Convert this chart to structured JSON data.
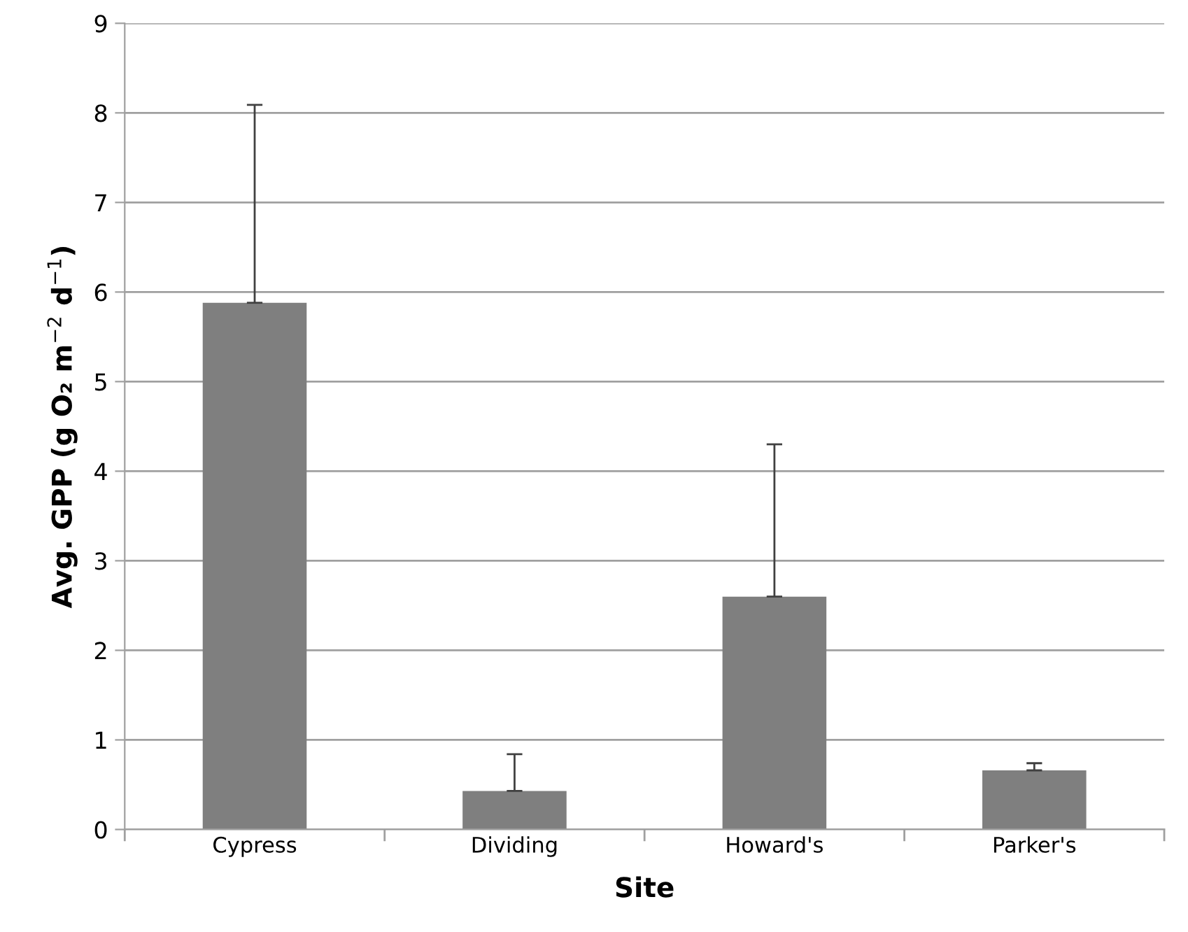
{
  "chart_data": {
    "type": "bar",
    "xlabel": "Site",
    "ylabel": "Avg. GPP (g O₂ m$^{−2}$ d$^{−1}$)",
    "categories": [
      "Cypress",
      "Dividing",
      "Howard's",
      "Parker's"
    ],
    "values": [
      5.88,
      0.43,
      2.6,
      0.66
    ],
    "errors": [
      [
        5.88,
        8.09
      ],
      [
        0.43,
        0.84
      ],
      [
        2.6,
        4.3
      ],
      [
        0.66,
        0.74
      ]
    ],
    "color": "#7f7f7f",
    "ylim": [
      0,
      9
    ],
    "yticks": [
      0,
      1,
      2,
      3,
      4,
      5,
      6,
      7,
      8,
      9
    ],
    "grid": "y"
  }
}
